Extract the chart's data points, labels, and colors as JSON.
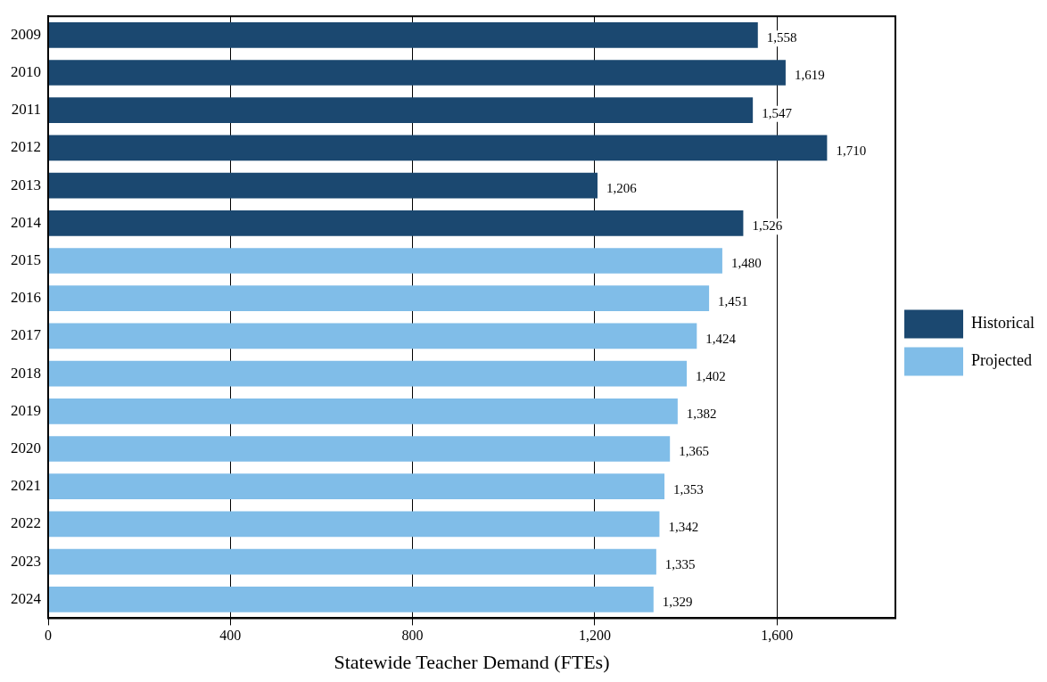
{
  "chart_data": {
    "type": "bar",
    "orientation": "horizontal",
    "xlabel": "Statewide Teacher Demand (FTEs)",
    "categories": [
      "2009",
      "2010",
      "2011",
      "2012",
      "2013",
      "2014",
      "2015",
      "2016",
      "2017",
      "2018",
      "2019",
      "2020",
      "2021",
      "2022",
      "2023",
      "2024"
    ],
    "series": [
      {
        "name": "Historical",
        "color": "#1b4870",
        "values": [
          1558,
          1619,
          1547,
          1710,
          1206,
          1526,
          null,
          null,
          null,
          null,
          null,
          null,
          null,
          null,
          null,
          null
        ],
        "value_labels": [
          "1,558",
          "1,619",
          "1,547",
          "1,710",
          "1,206",
          "1,526",
          null,
          null,
          null,
          null,
          null,
          null,
          null,
          null,
          null,
          null
        ]
      },
      {
        "name": "Projected",
        "color": "#80bde8",
        "values": [
          null,
          null,
          null,
          null,
          null,
          null,
          1480,
          1451,
          1424,
          1402,
          1382,
          1365,
          1353,
          1342,
          1335,
          1329
        ],
        "value_labels": [
          null,
          null,
          null,
          null,
          null,
          null,
          "1,480",
          "1,451",
          "1,424",
          "1,402",
          "1,382",
          "1,365",
          "1,353",
          "1,342",
          "1,335",
          "1,329"
        ]
      }
    ],
    "xlim": [
      0,
      1860
    ],
    "xticks": [
      0,
      400,
      800,
      {
        "value": 1200,
        "label": "1,200"
      },
      {
        "value": 1600,
        "label": "1,600"
      }
    ],
    "grid": "x",
    "legend": "right"
  }
}
